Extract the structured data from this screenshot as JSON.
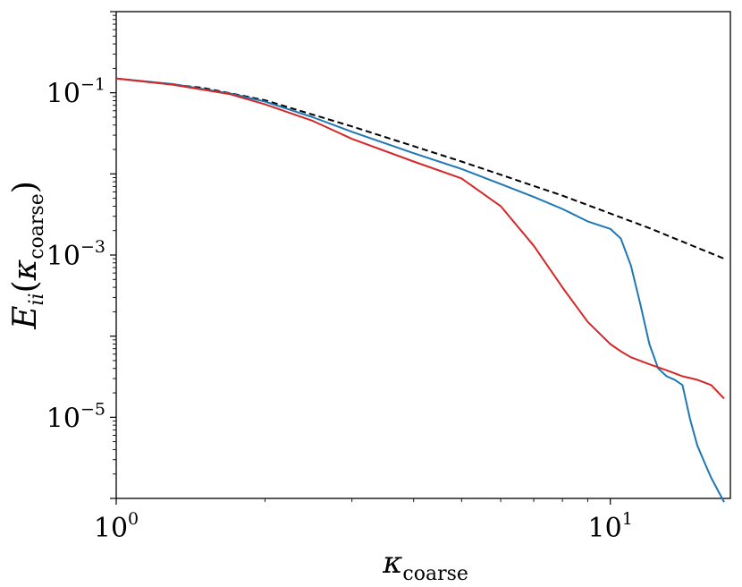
{
  "chart_data": {
    "type": "line",
    "xscale": "log",
    "yscale": "log",
    "xlim": [
      1.0,
      17.5
    ],
    "ylim": [
      1e-06,
      1.0
    ],
    "xticks": [
      {
        "value": 1,
        "base": "10",
        "exp": "0"
      },
      {
        "value": 10,
        "base": "10",
        "exp": "1"
      }
    ],
    "yticks": [
      {
        "value": 0.1,
        "base": "10",
        "exp": "−1"
      },
      {
        "value": 0.001,
        "base": "10",
        "exp": "−3"
      },
      {
        "value": 1e-05,
        "base": "10",
        "exp": "−5"
      }
    ],
    "xlabel": {
      "main": "κ",
      "sub": "coarse"
    },
    "ylabel": {
      "main": "E",
      "sub": "ii",
      "open": "(",
      "arg": "κ",
      "argsub": "coarse",
      "close": ")"
    },
    "grid": false,
    "legend": "none",
    "series": [
      {
        "color": "#000000",
        "style": "dashed",
        "x": [
          1,
          1.5,
          2,
          3,
          5,
          8,
          12,
          17
        ],
        "y": [
          0.15,
          0.115,
          0.081,
          0.0385,
          0.0142,
          0.0054,
          0.00215,
          0.0009
        ]
      },
      {
        "color": "#1f77b4",
        "style": "solid",
        "x": [
          1,
          1.3,
          1.7,
          2,
          2.5,
          3,
          4,
          5,
          6,
          7,
          8,
          9,
          10,
          10.5,
          11,
          11.5,
          12,
          12.5,
          13,
          13.5,
          14,
          14.5,
          15,
          15.5,
          16,
          17
        ],
        "y": [
          0.15,
          0.128,
          0.098,
          0.078,
          0.05,
          0.033,
          0.018,
          0.0115,
          0.0075,
          0.0052,
          0.0037,
          0.0026,
          0.0021,
          0.0016,
          0.00075,
          0.00025,
          8e-05,
          4e-05,
          3.2e-05,
          2.9e-05,
          2.5e-05,
          9.5e-06,
          4.5e-06,
          2.8e-06,
          1.8e-06,
          9e-07
        ]
      },
      {
        "color": "#d62728",
        "style": "solid",
        "x": [
          1,
          1.3,
          1.7,
          2,
          2.5,
          3,
          4,
          5,
          6,
          7,
          8,
          9,
          10,
          10.5,
          11,
          12,
          13,
          14,
          15,
          16,
          17
        ],
        "y": [
          0.15,
          0.126,
          0.096,
          0.072,
          0.045,
          0.027,
          0.0142,
          0.0088,
          0.004,
          0.0013,
          0.0004,
          0.00015,
          8e-05,
          6.5e-05,
          5.5e-05,
          4.5e-05,
          3.8e-05,
          3.2e-05,
          2.9e-05,
          2.5e-05,
          1.7e-05
        ]
      }
    ]
  }
}
